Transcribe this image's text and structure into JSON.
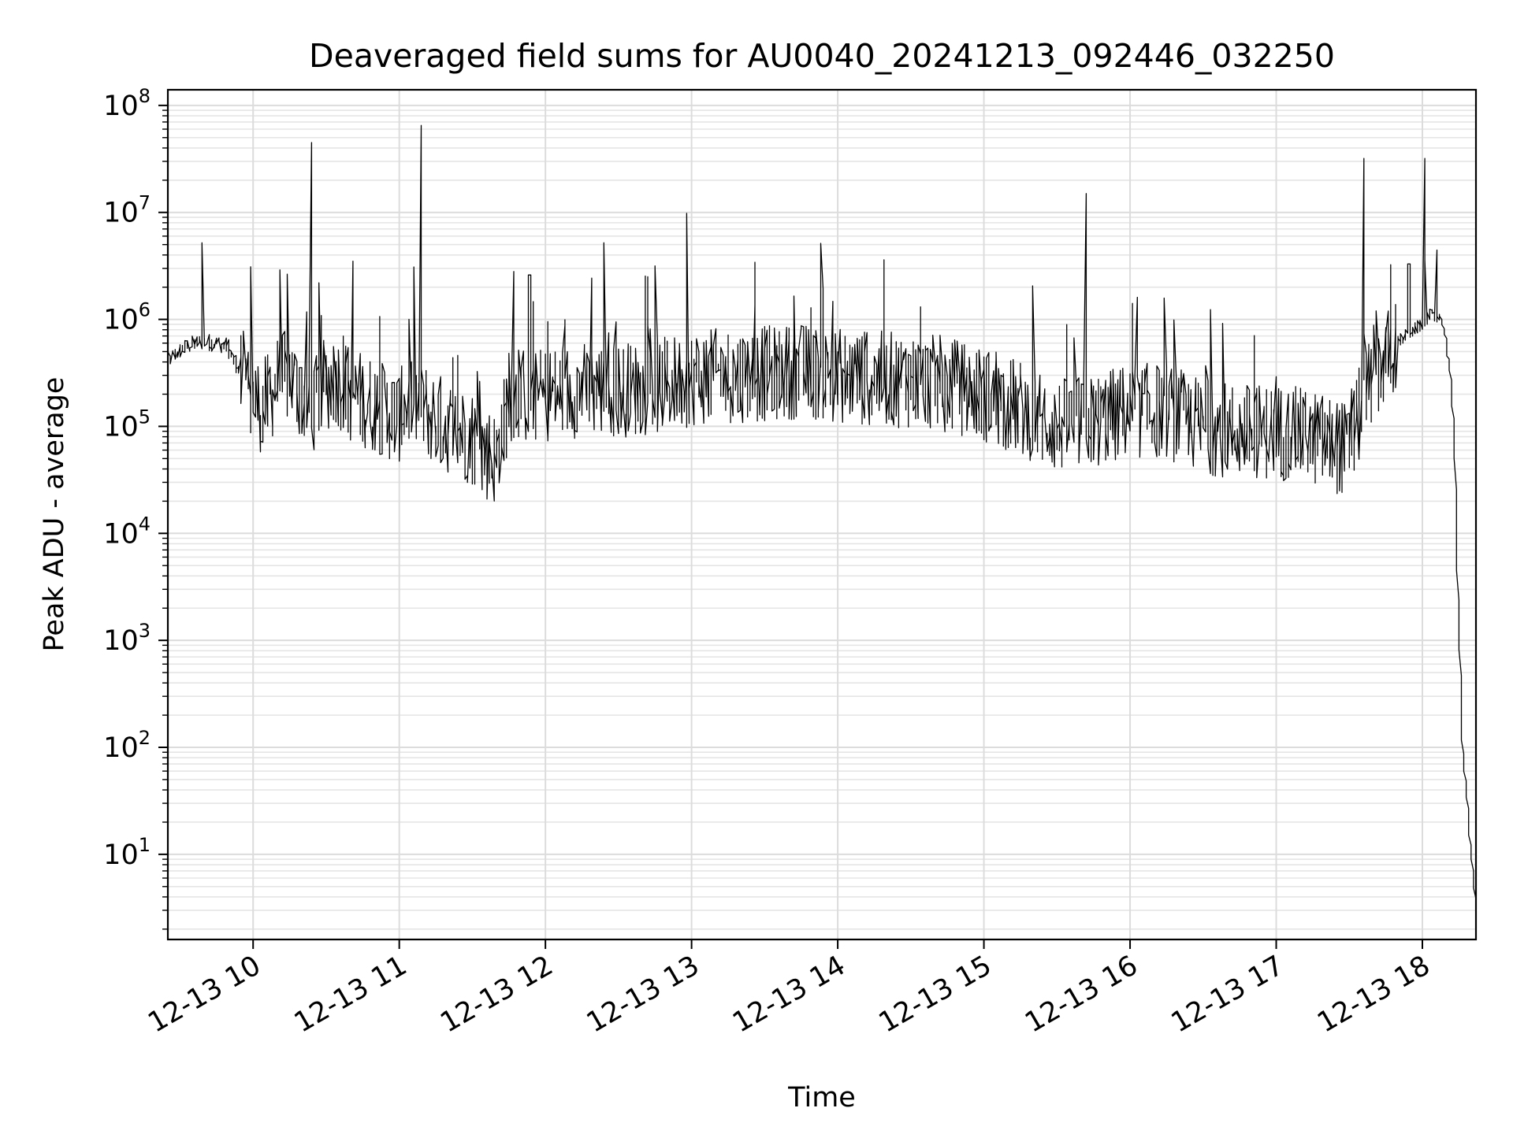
{
  "chart_data": {
    "type": "line",
    "title": "Deaveraged field sums for AU0040_20241213_092446_032250",
    "xlabel": "Time",
    "ylabel": "Peak ADU - average",
    "xscale": "time",
    "yscale": "log",
    "xlim": [
      "2024-12-13 09:25",
      "2024-12-13 18:22"
    ],
    "ylim": [
      1.6,
      140000000
    ],
    "x_ticks": [
      {
        "value": "2024-12-13 10:00",
        "label": "12-13 10"
      },
      {
        "value": "2024-12-13 11:00",
        "label": "12-13 11"
      },
      {
        "value": "2024-12-13 12:00",
        "label": "12-13 12"
      },
      {
        "value": "2024-12-13 13:00",
        "label": "12-13 13"
      },
      {
        "value": "2024-12-13 14:00",
        "label": "12-13 14"
      },
      {
        "value": "2024-12-13 15:00",
        "label": "12-13 15"
      },
      {
        "value": "2024-12-13 16:00",
        "label": "12-13 16"
      },
      {
        "value": "2024-12-13 17:00",
        "label": "12-13 17"
      },
      {
        "value": "2024-12-13 18:00",
        "label": "12-13 18"
      }
    ],
    "y_ticks": [
      {
        "value": 10,
        "base": "10",
        "exp": "1"
      },
      {
        "value": 100,
        "base": "10",
        "exp": "2"
      },
      {
        "value": 1000,
        "base": "10",
        "exp": "3"
      },
      {
        "value": 10000,
        "base": "10",
        "exp": "4"
      },
      {
        "value": 100000,
        "base": "10",
        "exp": "5"
      },
      {
        "value": 1000000,
        "base": "10",
        "exp": "6"
      },
      {
        "value": 10000000,
        "base": "10",
        "exp": "7"
      },
      {
        "value": 100000000,
        "base": "10",
        "exp": "8"
      }
    ],
    "grid": "major-and-minor",
    "line_color": "#000000",
    "grid_color": "#e5e5e5",
    "series": [
      {
        "x": [
          "2024-12-13 09:25",
          "2024-12-13 09:30",
          "2024-12-13 09:35",
          "2024-12-13 09:40",
          "2024-12-13 09:45",
          "2024-12-13 09:50",
          "2024-12-13 09:55",
          "2024-12-13 10:00",
          "2024-12-13 10:05",
          "2024-12-13 10:10",
          "2024-12-13 10:15",
          "2024-12-13 10:20",
          "2024-12-13 10:25",
          "2024-12-13 10:30",
          "2024-12-13 10:35",
          "2024-12-13 10:40",
          "2024-12-13 10:45",
          "2024-12-13 10:50",
          "2024-12-13 10:55",
          "2024-12-13 11:00",
          "2024-12-13 11:05",
          "2024-12-13 11:10",
          "2024-12-13 11:15",
          "2024-12-13 11:20",
          "2024-12-13 11:25",
          "2024-12-13 11:30",
          "2024-12-13 11:35",
          "2024-12-13 11:40",
          "2024-12-13 11:45",
          "2024-12-13 11:50",
          "2024-12-13 11:55",
          "2024-12-13 12:00",
          "2024-12-13 12:15",
          "2024-12-13 12:30",
          "2024-12-13 12:45",
          "2024-12-13 13:00",
          "2024-12-13 13:15",
          "2024-12-13 13:30",
          "2024-12-13 13:45",
          "2024-12-13 14:00",
          "2024-12-13 14:15",
          "2024-12-13 14:30",
          "2024-12-13 14:45",
          "2024-12-13 15:00",
          "2024-12-13 15:15",
          "2024-12-13 15:30",
          "2024-12-13 15:45",
          "2024-12-13 16:00",
          "2024-12-13 16:15",
          "2024-12-13 16:30",
          "2024-12-13 16:45",
          "2024-12-13 17:00",
          "2024-12-13 17:15",
          "2024-12-13 17:30",
          "2024-12-13 17:40",
          "2024-12-13 17:50",
          "2024-12-13 18:00",
          "2024-12-13 18:04",
          "2024-12-13 18:08",
          "2024-12-13 18:10",
          "2024-12-13 18:12",
          "2024-12-13 18:14",
          "2024-12-13 18:15",
          "2024-12-13 18:16",
          "2024-12-13 18:17",
          "2024-12-13 18:22"
        ],
        "values": [
          400000,
          500000,
          580000,
          620000,
          600000,
          560000,
          300000,
          180000,
          150000,
          250000,
          300000,
          200000,
          150000,
          250000,
          280000,
          200000,
          180000,
          160000,
          140000,
          120000,
          180000,
          150000,
          120000,
          100000,
          90000,
          80000,
          60000,
          50000,
          150000,
          200000,
          180000,
          200000,
          220000,
          220000,
          230000,
          280000,
          300000,
          310000,
          330000,
          300000,
          280000,
          270000,
          250000,
          200000,
          150000,
          100000,
          110000,
          140000,
          140000,
          100000,
          90000,
          90000,
          80000,
          60000,
          300000,
          600000,
          900000,
          1100000,
          1000000,
          700000,
          300000,
          50000,
          3000,
          500,
          100,
          4
        ]
      }
    ],
    "spikes": [
      {
        "x": "2024-12-13 09:40",
        "y": 5200000
      },
      {
        "x": "2024-12-13 10:00",
        "y": 3100000
      },
      {
        "x": "2024-12-13 10:24",
        "y": 45000000
      },
      {
        "x": "2024-12-13 10:28",
        "y": 2200000
      },
      {
        "x": "2024-12-13 10:41",
        "y": 3500000
      },
      {
        "x": "2024-12-13 11:09",
        "y": 65000000
      },
      {
        "x": "2024-12-13 11:47",
        "y": 2800000
      },
      {
        "x": "2024-12-13 11:54",
        "y": 2600000
      },
      {
        "x": "2024-12-13 12:25",
        "y": 5200000
      },
      {
        "x": "2024-12-13 12:59",
        "y": 9800000
      },
      {
        "x": "2024-12-13 15:42",
        "y": 15000000
      },
      {
        "x": "2024-12-13 17:36",
        "y": 32000000
      },
      {
        "x": "2024-12-13 17:55",
        "y": 3300000
      },
      {
        "x": "2024-12-13 18:01",
        "y": 32000000
      }
    ]
  }
}
